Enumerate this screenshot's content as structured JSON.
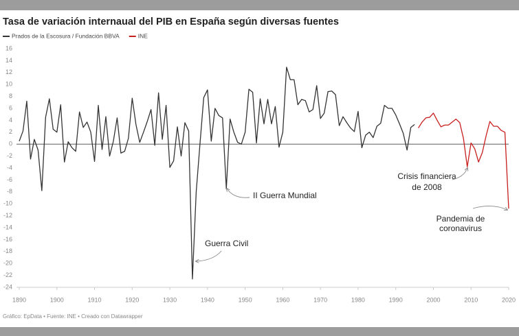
{
  "chart_data": {
    "type": "line",
    "title": "Tasa de variación internaual del PIB en España según diversas fuentes",
    "source": "Gráfico: EpData • Fuente: INE • Creado con Datawrapper",
    "xlim": [
      1890,
      2020
    ],
    "ylim": [
      -24,
      16
    ],
    "xticks": [
      1890,
      1900,
      1910,
      1920,
      1930,
      1940,
      1950,
      1960,
      1970,
      1980,
      1990,
      2000,
      2010,
      2020
    ],
    "yticks": [
      -24,
      -22,
      -20,
      -18,
      -16,
      -14,
      -12,
      -10,
      -8,
      -6,
      -4,
      -2,
      0,
      2,
      4,
      6,
      8,
      10,
      12,
      14,
      16
    ],
    "grid": false,
    "annotations": [
      "Guerra Civil",
      "II Guerra Mundial",
      "Crisis financiera",
      "de 2008",
      "Pandemia de",
      "coronavirus"
    ],
    "series": [
      {
        "name": "Prados de la Escosura / Fundación BBVA",
        "color": "#333333",
        "x": [
          1890,
          1891,
          1892,
          1893,
          1894,
          1895,
          1896,
          1897,
          1898,
          1899,
          1900,
          1901,
          1902,
          1903,
          1904,
          1905,
          1906,
          1907,
          1908,
          1909,
          1910,
          1911,
          1912,
          1913,
          1914,
          1915,
          1916,
          1917,
          1918,
          1919,
          1920,
          1921,
          1922,
          1923,
          1924,
          1925,
          1926,
          1927,
          1928,
          1929,
          1930,
          1931,
          1932,
          1933,
          1934,
          1935,
          1936,
          1937,
          1938,
          1939,
          1940,
          1941,
          1942,
          1943,
          1944,
          1945,
          1946,
          1947,
          1948,
          1949,
          1950,
          1951,
          1952,
          1953,
          1954,
          1955,
          1956,
          1957,
          1958,
          1959,
          1960,
          1961,
          1962,
          1963,
          1964,
          1965,
          1966,
          1967,
          1968,
          1969,
          1970,
          1971,
          1972,
          1973,
          1974,
          1975,
          1976,
          1977,
          1978,
          1979,
          1980,
          1981,
          1982,
          1983,
          1984,
          1985,
          1986,
          1987,
          1988,
          1989,
          1990,
          1991,
          1992,
          1993,
          1994,
          1995
        ],
        "values": [
          0.5,
          2.2,
          7.2,
          -2.5,
          0.8,
          -1,
          -7.8,
          4.5,
          7.6,
          2.5,
          2,
          6.6,
          -3,
          0.4,
          -0.6,
          -1.2,
          5.4,
          2.8,
          3.7,
          2,
          -2.9,
          6.5,
          -0.9,
          4.6,
          -2,
          0.5,
          4.4,
          -1.5,
          -1.2,
          1,
          7.7,
          3.3,
          0.3,
          2,
          3.8,
          5.8,
          -0.2,
          8.6,
          0.8,
          6.5,
          -3.9,
          -2.8,
          2.9,
          -2,
          3.6,
          2.2,
          -22.6,
          -8,
          0,
          7.8,
          9.1,
          0.5,
          6,
          4.8,
          4.4,
          -7.5,
          4.2,
          2,
          0.3,
          0,
          2,
          9.2,
          8.7,
          0.2,
          7.6,
          3.4,
          7.5,
          3.4,
          6.3,
          -0.5,
          2,
          12.9,
          10.8,
          10.8,
          6.6,
          7.5,
          7.3,
          5.4,
          5.8,
          9.8,
          4.3,
          5.2,
          8.8,
          8.9,
          8.3,
          3.1,
          4.6,
          3.6,
          2.7,
          2.1,
          5.5,
          -0.6,
          1.5,
          2,
          1.1,
          3,
          3.5,
          6.5,
          6,
          6,
          4.9,
          3.4,
          1.8,
          -1,
          2.8,
          3.3
        ]
      },
      {
        "name": "INE",
        "color": "#c71e1d",
        "x": [
          1996,
          1997,
          1998,
          1999,
          2000,
          2001,
          2002,
          2003,
          2004,
          2005,
          2006,
          2007,
          2008,
          2009,
          2010,
          2011,
          2012,
          2013,
          2014,
          2015,
          2016,
          2017,
          2018,
          2019,
          2020
        ],
        "values": [
          2.7,
          3.7,
          4.4,
          4.5,
          5.2,
          4,
          2.9,
          3.2,
          3.2,
          3.7,
          4.2,
          3.6,
          0.9,
          -3.8,
          0.2,
          -0.8,
          -3,
          -1.4,
          1.4,
          3.8,
          3,
          3,
          2.3,
          2,
          -10.8
        ]
      }
    ]
  }
}
